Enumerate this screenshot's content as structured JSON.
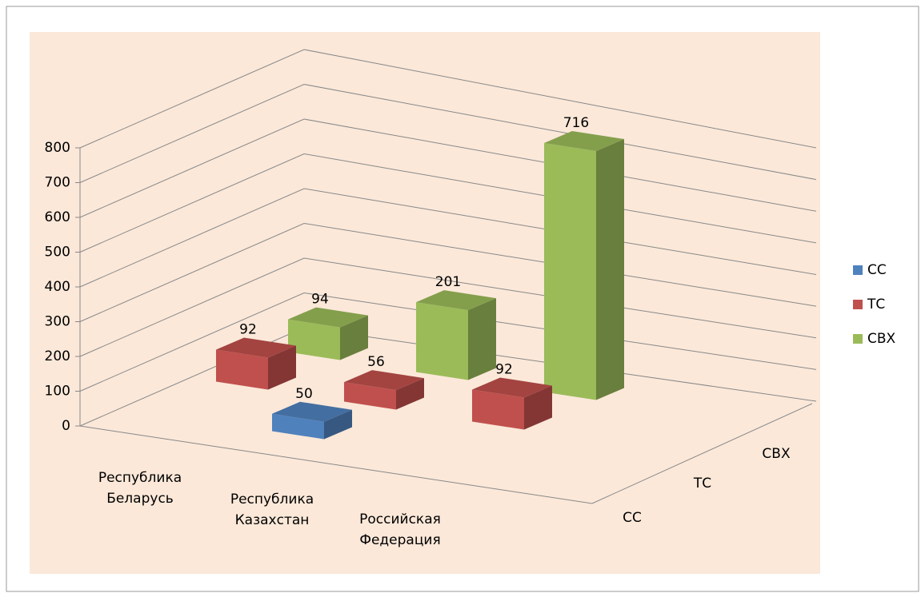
{
  "chart_data": {
    "type": "bar3d",
    "categories": [
      "Республика Беларусь",
      "Республика Казахстан",
      "Российская Федерация"
    ],
    "series": [
      {
        "name": "СС",
        "color": "#4f81bd",
        "values": [
          null,
          50,
          null
        ]
      },
      {
        "name": "ТС",
        "color": "#c0504d",
        "values": [
          92,
          56,
          92
        ]
      },
      {
        "name": "СВХ",
        "color": "#9bbb59",
        "values": [
          94,
          201,
          716
        ]
      }
    ],
    "ylim": [
      0,
      800
    ],
    "yticks": [
      0,
      100,
      200,
      300,
      400,
      500,
      600,
      700,
      800
    ],
    "grid": true,
    "legend": "right"
  }
}
